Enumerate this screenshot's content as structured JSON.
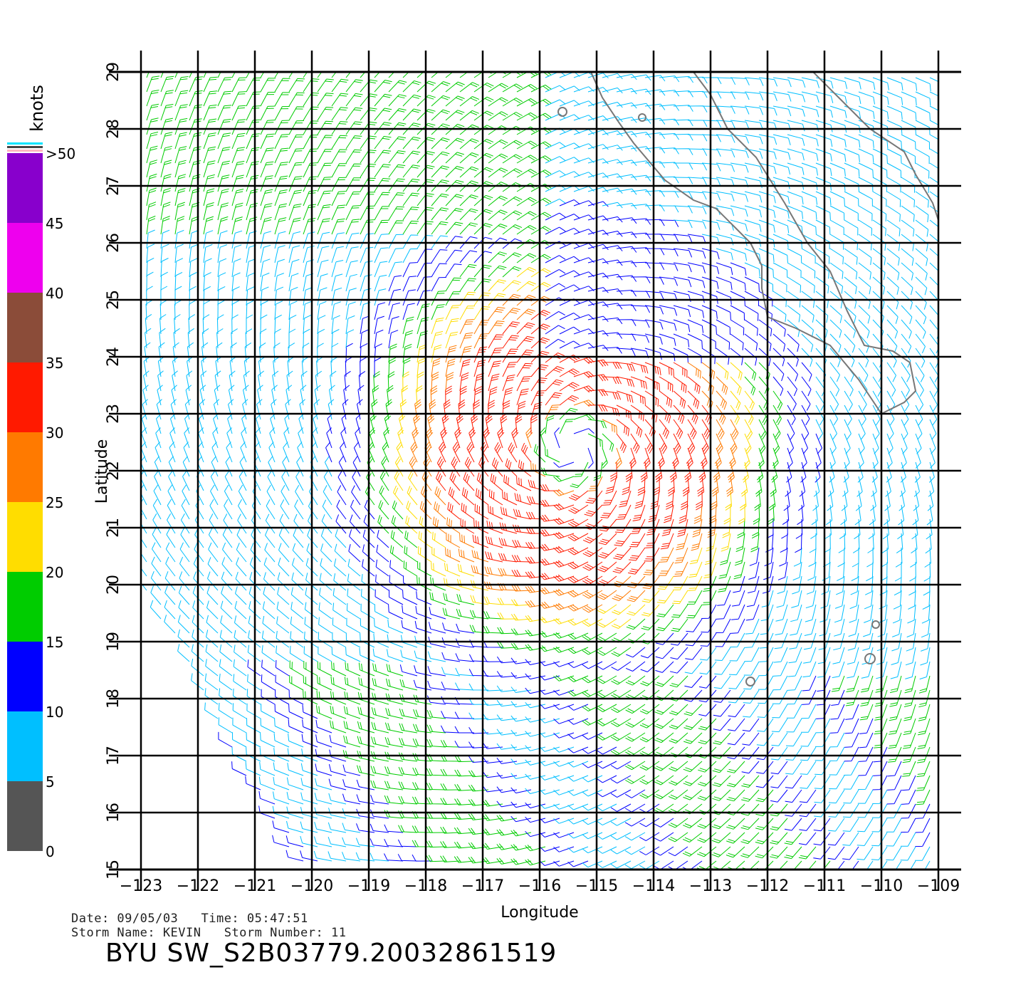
{
  "chart_data": {
    "type": "wind_barb_map",
    "xlabel": "Longitude",
    "ylabel": "Latitude",
    "xlim": [
      -123,
      -109
    ],
    "ylim": [
      15,
      29
    ],
    "x_ticks": [
      "−123",
      "−122",
      "−121",
      "−120",
      "−119",
      "−118",
      "−117",
      "−116",
      "−115",
      "−114",
      "−113",
      "−112",
      "−111",
      "−110",
      "−109"
    ],
    "y_ticks": [
      "15",
      "16",
      "17",
      "18",
      "19",
      "20",
      "21",
      "22",
      "23",
      "24",
      "25",
      "26",
      "27",
      "28",
      "29"
    ],
    "grid": true,
    "storm_center": {
      "lon": -115.4,
      "lat": 22.4
    },
    "max_wind_knots": 35,
    "colorbar": {
      "title": "knots",
      "placement": "left",
      "bands": [
        {
          "from": 0,
          "to": 5,
          "color": "#555555"
        },
        {
          "from": 5,
          "to": 10,
          "color": "#00bfff"
        },
        {
          "from": 10,
          "to": 15,
          "color": "#0000ff"
        },
        {
          "from": 15,
          "to": 20,
          "color": "#00cc00"
        },
        {
          "from": 20,
          "to": 25,
          "color": "#ffdd00"
        },
        {
          "from": 25,
          "to": 30,
          "color": "#ff7a00"
        },
        {
          "from": 30,
          "to": 35,
          "color": "#ff1a00"
        },
        {
          "from": 35,
          "to": 40,
          "color": "#8b4c39"
        },
        {
          "from": 40,
          "to": 45,
          "color": "#ee00ee"
        },
        {
          "from": 45,
          "to": 50,
          "color": "#8800cc"
        }
      ],
      "labels": [
        ">50",
        "45",
        "40",
        "35",
        "30",
        "25",
        "20",
        "15",
        "10",
        "5",
        "0"
      ]
    }
  },
  "info": {
    "date_line": "Date: 09/05/03   Time: 05:47:51",
    "storm_line": "Storm Name: KEVIN   Storm Number: 11",
    "title": "BYU SW_S2B03779.20032861519"
  }
}
